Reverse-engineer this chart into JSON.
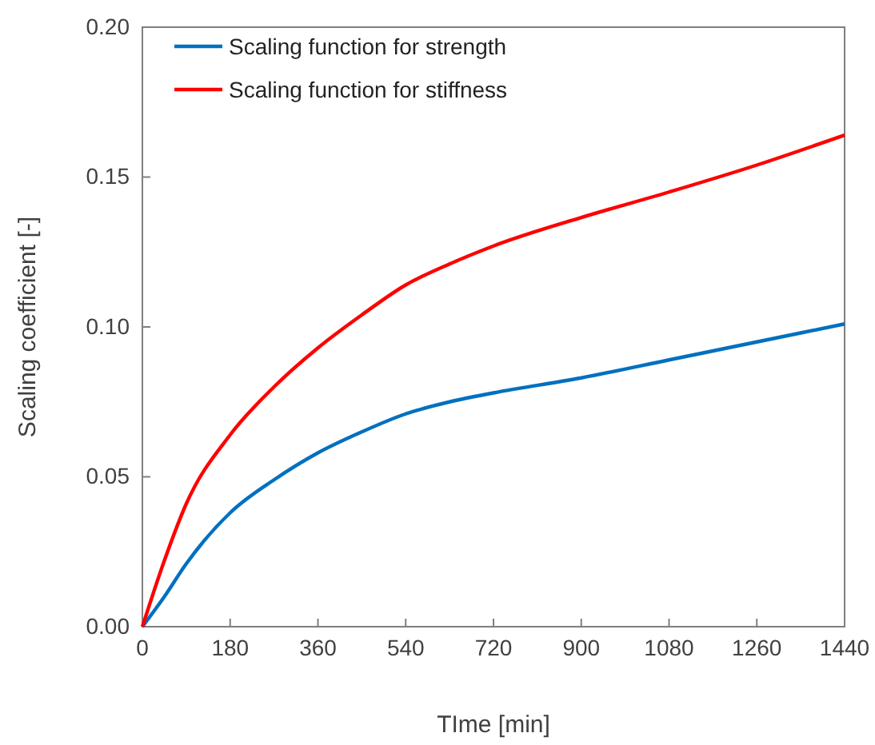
{
  "chart_data": {
    "type": "line",
    "xlabel": "TIme [min]",
    "ylabel": "Scaling coefficient [-]",
    "xlim": [
      0,
      1440
    ],
    "xticks": [
      0,
      180,
      360,
      540,
      720,
      900,
      1080,
      1260,
      1440
    ],
    "ylim": [
      0,
      0.2
    ],
    "yticks": [
      {
        "value": 0,
        "label": "0.00"
      },
      {
        "value": 0.05,
        "label": "0.05"
      },
      {
        "value": 0.1,
        "label": "0.10"
      },
      {
        "value": 0.15,
        "label": "0.15"
      },
      {
        "value": 0.2,
        "label": "0.20"
      }
    ],
    "grid": false,
    "legend": "top left",
    "marker": "none",
    "line_style": "solid",
    "series": [
      {
        "name": "Scaling function for strength",
        "color": "#0070c0",
        "x": [
          0,
          45,
          90,
          180,
          270,
          360,
          450,
          540,
          630,
          720,
          900,
          1080,
          1260,
          1440
        ],
        "values": [
          0,
          0.01,
          0.021,
          0.038,
          0.049,
          0.058,
          0.065,
          0.071,
          0.075,
          0.078,
          0.083,
          0.089,
          0.095,
          0.101
        ]
      },
      {
        "name": "Scaling function for stiffness",
        "color": "#ff0000",
        "x": [
          0,
          45,
          90,
          180,
          270,
          360,
          450,
          540,
          630,
          720,
          900,
          1080,
          1260,
          1440
        ],
        "values": [
          0,
          0.022,
          0.041,
          0.064,
          0.08,
          0.093,
          0.104,
          0.114,
          0.121,
          0.127,
          0.1365,
          0.145,
          0.154,
          0.164
        ]
      }
    ]
  }
}
